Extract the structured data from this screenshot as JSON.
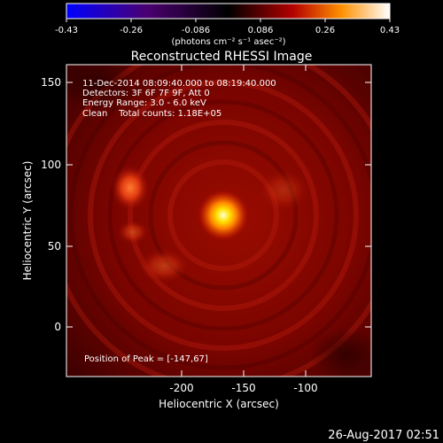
{
  "colorbar": {
    "ticks": [
      "-0.43",
      "-0.26",
      "-0.086",
      "0.086",
      "0.26",
      "0.43"
    ],
    "units": "(photons cm⁻² s⁻¹ asec⁻²)"
  },
  "title": "Reconstructed RHESSI Image",
  "info": {
    "time": "11-Dec-2014 08:09:40.000 to 08:19:40.000",
    "detectors": "Detectors: 3F 6F 7F 9F, Att 0",
    "energy": "Energy Range: 3.0 - 6.0 keV",
    "clean": "Clean    Total counts: 1.18E+05"
  },
  "peak": "Position of Peak = [-147,67]",
  "axes": {
    "xlabel": "Heliocentric X (arcsec)",
    "ylabel": "Heliocentric Y (arcsec)",
    "xticks": [
      "-200",
      "-150",
      "-100"
    ],
    "yticks": [
      "150",
      "100",
      "50",
      "0"
    ]
  },
  "footer_date": "26-Aug-2017 02:51",
  "colors": {
    "background": "#000000",
    "map_base": "#8a0000",
    "peak": "#fff6c0"
  }
}
